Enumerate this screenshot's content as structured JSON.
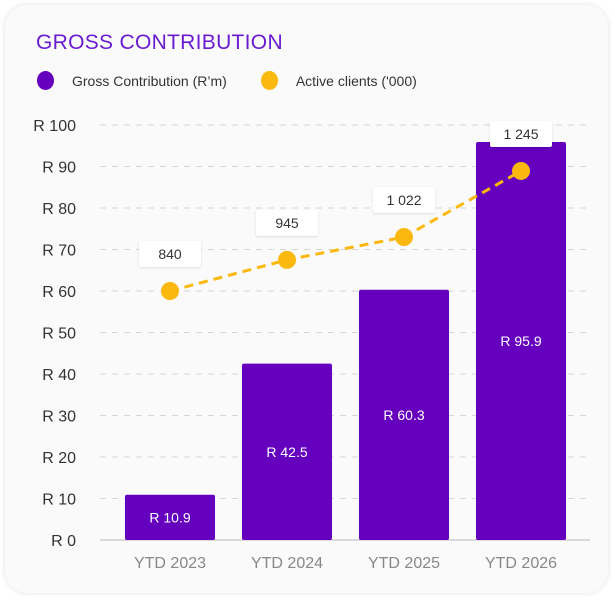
{
  "chart_data": {
    "type": "bar",
    "title": "GROSS CONTRIBUTION",
    "categories": [
      "YTD 2023",
      "YTD 2024",
      "YTD 2025",
      "YTD 2026"
    ],
    "series": [
      {
        "name": "Gross Contribution (R’m)",
        "type": "bar",
        "values": [
          10.9,
          42.5,
          60.3,
          95.9
        ],
        "labels": [
          "R 10.9",
          "R 42.5",
          "R 60.3",
          "R 95.9"
        ],
        "color": "#6400be"
      },
      {
        "name": "Active clients ('000)",
        "type": "line",
        "values": [
          840,
          945,
          1022,
          1245
        ],
        "labels": [
          "840",
          "945",
          "1 022",
          "1 245"
        ],
        "color": "#fbb80f",
        "axis": "secondary"
      }
    ],
    "yticks": [
      "R 0",
      "R 10",
      "R 20",
      "R 30",
      "R 40",
      "R 50",
      "R 60",
      "R 70",
      "R 80",
      "R 90",
      "R 100"
    ],
    "ylim": [
      0,
      100
    ],
    "y2lim": [
      0,
      1400
    ],
    "grid": true,
    "legend": "top-left"
  }
}
